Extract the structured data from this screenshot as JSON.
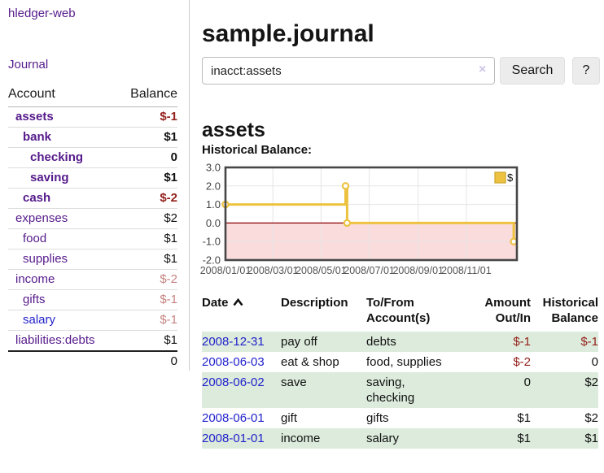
{
  "sidebar": {
    "brand": "hledger-web",
    "nav": {
      "journal": "Journal"
    },
    "accounts_table": {
      "col_account": "Account",
      "col_balance": "Balance",
      "rows": [
        {
          "name": "assets",
          "depth": 1,
          "bold": true,
          "balance": "$-1",
          "balance_style": "neg-strong",
          "link_style": "purple"
        },
        {
          "name": "bank",
          "depth": 2,
          "bold": true,
          "balance": "$1",
          "balance_style": "normal",
          "link_style": "purple"
        },
        {
          "name": "checking",
          "depth": 3,
          "bold": true,
          "balance": "0",
          "balance_style": "normal",
          "link_style": "purple"
        },
        {
          "name": "saving",
          "depth": 3,
          "bold": true,
          "balance": "$1",
          "balance_style": "normal",
          "link_style": "purple"
        },
        {
          "name": "cash",
          "depth": 2,
          "bold": true,
          "balance": "$-2",
          "balance_style": "neg-strong",
          "link_style": "purple"
        },
        {
          "name": "expenses",
          "depth": 1,
          "bold": false,
          "balance": "$2",
          "balance_style": "normal",
          "link_style": "purple"
        },
        {
          "name": "food",
          "depth": 2,
          "bold": false,
          "balance": "$1",
          "balance_style": "normal",
          "link_style": "purple"
        },
        {
          "name": "supplies",
          "depth": 2,
          "bold": false,
          "balance": "$1",
          "balance_style": "normal",
          "link_style": "purple"
        },
        {
          "name": "income",
          "depth": 1,
          "bold": false,
          "balance": "$-2",
          "balance_style": "neg-muted",
          "link_style": "purple"
        },
        {
          "name": "gifts",
          "depth": 2,
          "bold": false,
          "balance": "$-1",
          "balance_style": "neg-muted",
          "link_style": "purple"
        },
        {
          "name": "salary",
          "depth": 2,
          "bold": false,
          "balance": "$-1",
          "balance_style": "neg-muted",
          "link_style": "blue"
        },
        {
          "name": "liabilities:debts",
          "depth": 1,
          "bold": false,
          "balance": "$1",
          "balance_style": "normal",
          "link_style": "purple"
        }
      ],
      "total": "0"
    }
  },
  "main": {
    "title": "sample.journal",
    "search": {
      "value": "inacct:assets",
      "clear_icon": "×",
      "button": "Search",
      "help_button": "?"
    },
    "account_heading": "assets",
    "chart_heading": "Historical Balance:"
  },
  "chart_data": {
    "type": "line",
    "title": "Historical Balance:",
    "step": true,
    "ylim": [
      -2,
      3
    ],
    "y_ticks": [
      "3.0",
      "2.0",
      "1.0",
      "0.0",
      "-1.0",
      "-2.0"
    ],
    "x_range": [
      "2008-01-01",
      "2009-01-04"
    ],
    "x_tick_dates": [
      "2008-01-01",
      "2008-03-01",
      "2008-05-01",
      "2008-07-01",
      "2008-09-01",
      "2008-11-01"
    ],
    "x_tick_labels": [
      "2008/01/01",
      "2008/03/01",
      "2008/05/01",
      "2008/07/01",
      "2008/09/01",
      "2008/11/01"
    ],
    "series": [
      {
        "name": "$",
        "color": "#edc240",
        "points": [
          [
            "2008-01-01",
            1
          ],
          [
            "2008-06-01",
            2
          ],
          [
            "2008-06-03",
            0
          ],
          [
            "2008-12-31",
            -1
          ]
        ]
      }
    ],
    "legend": {
      "label": "$",
      "position": "top-right",
      "swatch_color": "#edc240"
    },
    "grid": true,
    "negative_region_color": "#fbdcdc",
    "zero_line_color": "#8b0000",
    "plot_border_color": "#474747",
    "gridline_color": "#e5e5e5"
  },
  "transactions": {
    "headers": {
      "date": "Date",
      "description": "Description",
      "accounts": "To/From Account(s)",
      "amount": "Amount Out/In",
      "balance": "Historical Balance"
    },
    "sort": {
      "column": "date",
      "direction": "ascending"
    },
    "rows": [
      {
        "date": "2008-12-31",
        "description": "pay off",
        "accounts": "debts",
        "amount": "$-1",
        "amount_style": "neg",
        "balance": "$-1",
        "balance_style": "neg",
        "shaded": true
      },
      {
        "date": "2008-06-03",
        "description": "eat & shop",
        "accounts": "food, supplies",
        "amount": "$-2",
        "amount_style": "neg",
        "balance": "0",
        "balance_style": "normal",
        "shaded": false
      },
      {
        "date": "2008-06-02",
        "description": "save",
        "accounts": "saving, checking",
        "amount": "0",
        "amount_style": "normal",
        "balance": "$2",
        "balance_style": "normal",
        "shaded": true
      },
      {
        "date": "2008-06-01",
        "description": "gift",
        "accounts": "gifts",
        "amount": "$1",
        "amount_style": "normal",
        "balance": "$2",
        "balance_style": "normal",
        "shaded": false
      },
      {
        "date": "2008-01-01",
        "description": "income",
        "accounts": "salary",
        "amount": "$1",
        "amount_style": "normal",
        "balance": "$1",
        "balance_style": "normal",
        "shaded": true
      }
    ]
  }
}
